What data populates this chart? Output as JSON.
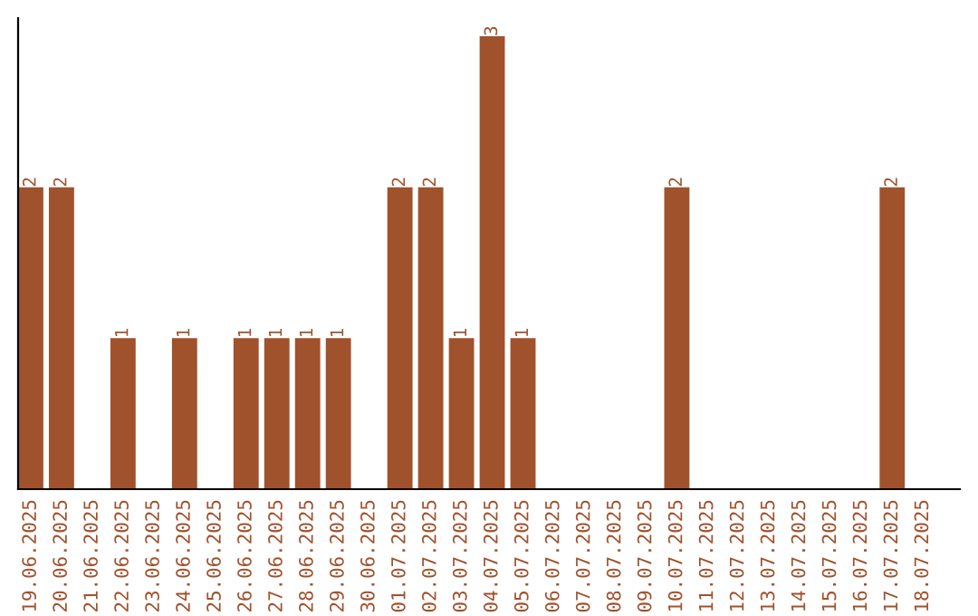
{
  "chart_data": {
    "type": "bar",
    "color": "#a0522d",
    "categories": [
      "19.06.2025",
      "20.06.2025",
      "21.06.2025",
      "22.06.2025",
      "23.06.2025",
      "24.06.2025",
      "25.06.2025",
      "26.06.2025",
      "27.06.2025",
      "28.06.2025",
      "29.06.2025",
      "30.06.2025",
      "01.07.2025",
      "02.07.2025",
      "03.07.2025",
      "04.07.2025",
      "05.07.2025",
      "06.07.2025",
      "07.07.2025",
      "08.07.2025",
      "09.07.2025",
      "10.07.2025",
      "11.07.2025",
      "12.07.2025",
      "13.07.2025",
      "14.07.2025",
      "15.07.2025",
      "16.07.2025",
      "17.07.2025",
      "18.07.2025"
    ],
    "values": [
      2,
      2,
      0,
      1,
      0,
      1,
      0,
      1,
      1,
      1,
      1,
      0,
      2,
      2,
      1,
      3,
      1,
      0,
      0,
      0,
      0,
      2,
      0,
      0,
      0,
      0,
      0,
      0,
      2,
      0
    ],
    "value_labels": [
      "2",
      "2",
      null,
      "1",
      null,
      "1",
      null,
      "1",
      "1",
      "1",
      "1",
      null,
      "2",
      "2",
      "1",
      "3",
      "1",
      null,
      null,
      null,
      null,
      "2",
      null,
      null,
      null,
      null,
      null,
      null,
      "2",
      null
    ],
    "tick_labels": "x",
    "grid": false,
    "legend": false
  }
}
